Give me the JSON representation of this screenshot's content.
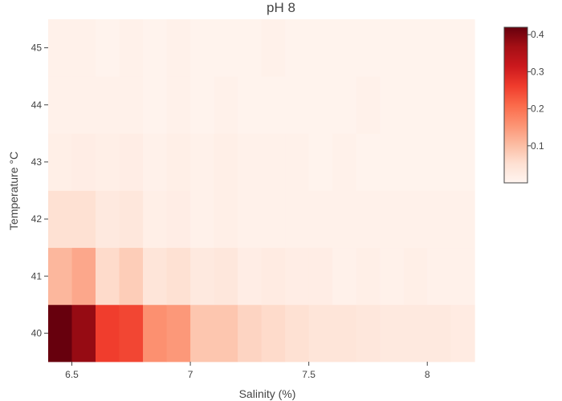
{
  "chart_data": {
    "type": "heatmap",
    "title": "pH 8",
    "xlabel": "Salinity (%)",
    "ylabel": "Temperature °C",
    "x_range": [
      6.4,
      8.25
    ],
    "y_range": [
      39.5,
      45.5
    ],
    "x_ticks": [
      6.5,
      7,
      7.5,
      8
    ],
    "x_tick_labels": [
      "6.5",
      "7",
      "7.5",
      "8"
    ],
    "y_ticks": [
      40,
      41,
      42,
      43,
      44,
      45
    ],
    "y_tick_labels": [
      "40",
      "41",
      "42",
      "43",
      "44",
      "45"
    ],
    "x": [
      6.45,
      6.55,
      6.65,
      6.75,
      6.85,
      6.95,
      7.05,
      7.15,
      7.25,
      7.35,
      7.45,
      7.55,
      7.65,
      7.75,
      7.85,
      7.95,
      8.05,
      8.15
    ],
    "y": [
      40,
      41,
      42,
      43,
      44,
      45
    ],
    "z": [
      [
        0.42,
        0.38,
        0.26,
        0.25,
        0.16,
        0.15,
        0.09,
        0.09,
        0.07,
        0.06,
        0.05,
        0.04,
        0.04,
        0.035,
        0.03,
        0.03,
        0.03,
        0.025
      ],
      [
        0.11,
        0.13,
        0.06,
        0.08,
        0.04,
        0.05,
        0.03,
        0.035,
        0.02,
        0.025,
        0.02,
        0.02,
        0.01,
        0.015,
        0.01,
        0.015,
        0.01,
        0.01
      ],
      [
        0.05,
        0.05,
        0.03,
        0.035,
        0.015,
        0.02,
        0.01,
        0.015,
        0.01,
        0.01,
        0.01,
        0.01,
        0.01,
        0.01,
        0.01,
        0.01,
        0.01,
        0.01
      ],
      [
        0.015,
        0.02,
        0.015,
        0.02,
        0.01,
        0.015,
        0.01,
        0.015,
        0.01,
        0.01,
        0.01,
        0.005,
        0.01,
        0.005,
        0.005,
        0.005,
        0.005,
        0.005
      ],
      [
        0.01,
        0.01,
        0.01,
        0.01,
        0.005,
        0.01,
        0.005,
        0.01,
        0.005,
        0.005,
        0.005,
        0.005,
        0.005,
        0.01,
        0.005,
        0.005,
        0.005,
        0.005
      ],
      [
        0.01,
        0.01,
        0.005,
        0.01,
        0.005,
        0.01,
        0.005,
        0.005,
        0.005,
        0.01,
        0.005,
        0.005,
        0.005,
        0.005,
        0.005,
        0.005,
        0.005,
        0.005
      ]
    ],
    "colorscale": "Reds",
    "zmin": 0,
    "zmax": 0.42,
    "colorbar_ticks": [
      0.1,
      0.2,
      0.3,
      0.4
    ],
    "colorbar_tick_labels": [
      "0.1",
      "0.2",
      "0.3",
      "0.4"
    ],
    "colors": [
      "#fff5f0",
      "#fee0d2",
      "#fcbba1",
      "#fc9272",
      "#fb6a4a",
      "#ef3b2c",
      "#cb181d",
      "#a50f15",
      "#67000d"
    ]
  }
}
